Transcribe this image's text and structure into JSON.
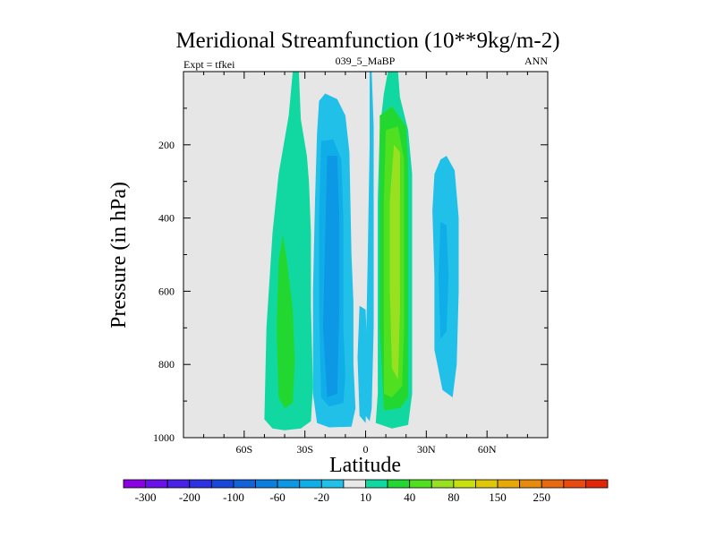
{
  "chart_data": {
    "type": "contour",
    "title": "Meridional Streamfunction (10**9kg/m-2)",
    "subtitle_left": "Expt = tfkei",
    "subtitle_center": "039_5_MaBP",
    "subtitle_right": "ANN",
    "xlabel": "Latitude",
    "ylabel": "Pressure (in hPa)",
    "xlim": [
      -90,
      90
    ],
    "ylim": [
      1000,
      0
    ],
    "x_ticks": [
      {
        "value": -60,
        "label": "60S"
      },
      {
        "value": -30,
        "label": "30S"
      },
      {
        "value": 0,
        "label": "0"
      },
      {
        "value": 30,
        "label": "30N"
      },
      {
        "value": 60,
        "label": "60N"
      }
    ],
    "y_ticks": [
      {
        "value": 200,
        "label": "200"
      },
      {
        "value": 400,
        "label": "400"
      },
      {
        "value": 600,
        "label": "600"
      },
      {
        "value": 800,
        "label": "800"
      },
      {
        "value": 1000,
        "label": "1000"
      }
    ],
    "background_color": "#e6e6e6",
    "colorbar": {
      "colors": [
        "#8a00e0",
        "#6a10e8",
        "#4a22e6",
        "#2c32e0",
        "#1848d8",
        "#1262d8",
        "#0c7ee0",
        "#0c98e4",
        "#10aee8",
        "#20c0e8",
        "#e8e8e8",
        "#10d8a0",
        "#22d830",
        "#50e020",
        "#98e020",
        "#c8e010",
        "#e0c808",
        "#e8a808",
        "#e88a0c",
        "#e86a10",
        "#e84a10",
        "#e02808"
      ],
      "labels": [
        {
          "after_box": 1,
          "text": "-300"
        },
        {
          "after_box": 3,
          "text": "-200"
        },
        {
          "after_box": 5,
          "text": "-100"
        },
        {
          "after_box": 7,
          "text": "-60"
        },
        {
          "after_box": 9,
          "text": "-20"
        },
        {
          "after_box": 11,
          "text": "10"
        },
        {
          "after_box": 13,
          "text": "40"
        },
        {
          "after_box": 15,
          "text": "80"
        },
        {
          "after_box": 17,
          "text": "150"
        },
        {
          "after_box": 19,
          "text": "250"
        }
      ]
    },
    "regions": [
      {
        "name": "sh-subtropical-cell",
        "color": "#10d8a0",
        "points": [
          [
            -36,
            0
          ],
          [
            -33,
            0
          ],
          [
            -32,
            130
          ],
          [
            -29,
            230
          ],
          [
            -28,
            300
          ],
          [
            -27,
            440
          ],
          [
            -27,
            640
          ],
          [
            -26,
            860
          ],
          [
            -27,
            955
          ],
          [
            -32,
            975
          ],
          [
            -40,
            980
          ],
          [
            -46,
            975
          ],
          [
            -50,
            950
          ],
          [
            -49,
            700
          ],
          [
            -46,
            440
          ],
          [
            -43,
            280
          ],
          [
            -38,
            120
          ]
        ]
      },
      {
        "name": "sh-subtropical-core",
        "color": "#22d830",
        "points": [
          [
            -41,
            445
          ],
          [
            -39,
            510
          ],
          [
            -36,
            650
          ],
          [
            -35,
            790
          ],
          [
            -36,
            905
          ],
          [
            -40,
            920
          ],
          [
            -43,
            890
          ],
          [
            -44,
            700
          ],
          [
            -43,
            520
          ]
        ]
      },
      {
        "name": "sh-hadley-outer",
        "color": "#20c0e8",
        "points": [
          [
            -20,
            60
          ],
          [
            -14,
            75
          ],
          [
            -10,
            120
          ],
          [
            -8,
            220
          ],
          [
            -7,
            500
          ],
          [
            -6,
            630
          ],
          [
            -6,
            800
          ],
          [
            -5,
            920
          ],
          [
            -7,
            970
          ],
          [
            -18,
            972
          ],
          [
            -24,
            960
          ],
          [
            -26,
            880
          ],
          [
            -26,
            600
          ],
          [
            -25,
            350
          ],
          [
            -24,
            170
          ],
          [
            -23,
            80
          ]
        ]
      },
      {
        "name": "sh-hadley-mid",
        "color": "#10aee8",
        "points": [
          [
            -22,
            190
          ],
          [
            -16,
            185
          ],
          [
            -12,
            240
          ],
          [
            -11,
            400
          ],
          [
            -11,
            700
          ],
          [
            -10,
            830
          ],
          [
            -11,
            905
          ],
          [
            -18,
            915
          ],
          [
            -22,
            890
          ],
          [
            -23,
            650
          ],
          [
            -23,
            400
          ]
        ]
      },
      {
        "name": "sh-hadley-core",
        "color": "#0c98e4",
        "points": [
          [
            -19,
            230
          ],
          [
            -14,
            230
          ],
          [
            -13,
            400
          ],
          [
            -13,
            650
          ],
          [
            -14,
            880
          ],
          [
            -19,
            890
          ],
          [
            -21,
            700
          ],
          [
            -20,
            450
          ]
        ]
      },
      {
        "name": "eq-thin-branch",
        "color": "#20c0e8",
        "points": [
          [
            3,
            0
          ],
          [
            4,
            150
          ],
          [
            4,
            400
          ],
          [
            4,
            700
          ],
          [
            3,
            920
          ],
          [
            2,
            955
          ],
          [
            0,
            940
          ],
          [
            0,
            800
          ],
          [
            1,
            520
          ],
          [
            2,
            200
          ],
          [
            2,
            0
          ]
        ]
      },
      {
        "name": "eq-lower-branch",
        "color": "#20c0e8",
        "points": [
          [
            -3,
            640
          ],
          [
            0,
            650
          ],
          [
            1,
            800
          ],
          [
            0,
            960
          ],
          [
            -3,
            940
          ],
          [
            -4,
            780
          ]
        ]
      },
      {
        "name": "nh-hadley-outer",
        "color": "#10d8a0",
        "points": [
          [
            11,
            0
          ],
          [
            16,
            0
          ],
          [
            17,
            70
          ],
          [
            21,
            160
          ],
          [
            23,
            280
          ],
          [
            23,
            500
          ],
          [
            23,
            700
          ],
          [
            23,
            880
          ],
          [
            21,
            965
          ],
          [
            13,
            975
          ],
          [
            5,
            960
          ],
          [
            6,
            880
          ],
          [
            6,
            600
          ],
          [
            6,
            350
          ],
          [
            7,
            160
          ],
          [
            9,
            60
          ]
        ]
      },
      {
        "name": "nh-hadley-mid",
        "color": "#22d830",
        "points": [
          [
            7,
            120
          ],
          [
            13,
            95
          ],
          [
            20,
            150
          ],
          [
            21,
            250
          ],
          [
            21,
            500
          ],
          [
            21,
            700
          ],
          [
            21,
            890
          ],
          [
            17,
            920
          ],
          [
            9,
            925
          ],
          [
            7,
            700
          ],
          [
            7,
            400
          ],
          [
            7,
            200
          ]
        ]
      },
      {
        "name": "nh-hadley-inner",
        "color": "#50e020",
        "points": [
          [
            10,
            160
          ],
          [
            16,
            150
          ],
          [
            19,
            240
          ],
          [
            19,
            500
          ],
          [
            19,
            700
          ],
          [
            18,
            860
          ],
          [
            13,
            890
          ],
          [
            9,
            880
          ],
          [
            9,
            600
          ],
          [
            9,
            350
          ]
        ]
      },
      {
        "name": "nh-hadley-core",
        "color": "#98e020",
        "points": [
          [
            14,
            200
          ],
          [
            17,
            220
          ],
          [
            17,
            450
          ],
          [
            17,
            650
          ],
          [
            16,
            840
          ],
          [
            13,
            810
          ],
          [
            12,
            600
          ],
          [
            12,
            350
          ]
        ]
      },
      {
        "name": "nh-ferrel-outer",
        "color": "#20c0e8",
        "points": [
          [
            37,
            240
          ],
          [
            40,
            230
          ],
          [
            44,
            270
          ],
          [
            46,
            400
          ],
          [
            46,
            600
          ],
          [
            45,
            800
          ],
          [
            43,
            890
          ],
          [
            38,
            870
          ],
          [
            34,
            760
          ],
          [
            34,
            560
          ],
          [
            33,
            380
          ],
          [
            34,
            280
          ]
        ]
      },
      {
        "name": "nh-ferrel-core",
        "color": "#10aee8",
        "points": [
          [
            37,
            410
          ],
          [
            40,
            420
          ],
          [
            41,
            560
          ],
          [
            40,
            710
          ],
          [
            37,
            730
          ],
          [
            36,
            560
          ]
        ]
      }
    ]
  }
}
